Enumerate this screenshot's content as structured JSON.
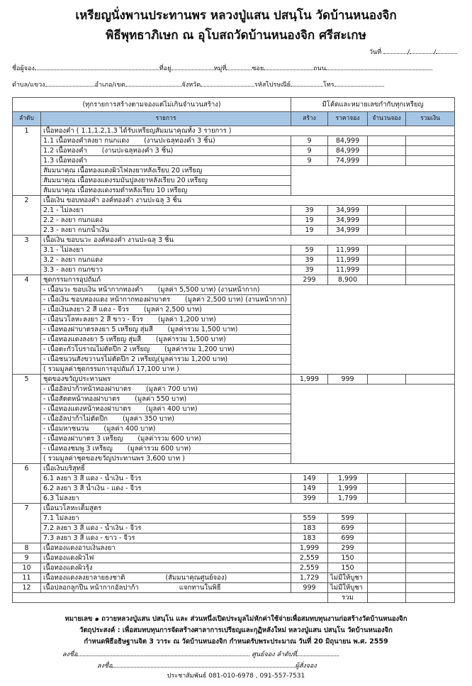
{
  "header": {
    "title": "เหรียญนั่งพานประทานพร หลวงปู่แสน ปสนฺโน วัดบ้านหนองจิก",
    "subtitle": "พิธีพุทธาภิเษก ณ อุโบสถวัดบ้านหนองจิก ศรีสะเกษ",
    "date_label": "วันที่",
    "date_sep": "/"
  },
  "form": {
    "name": "ชื่อผู้จอง",
    "address": "ที่อยู่",
    "moo": "หมู่ที่",
    "soi": "ซอย",
    "road": "ถนน",
    "tambon": "ตำบล/แขวง",
    "amphoe": "อำเภอ/เขต",
    "province": "จังหวัด",
    "postcode": "รหัสไปรษณีย์",
    "phone": "โทร"
  },
  "table": {
    "top_left": "(ทุกรายการสร้างตามจองแต่ไม่เกินจำนวนสร้าง)",
    "top_right": "มีโค้ดและหมายเลขกำกับทุกเหรียญ",
    "columns": [
      "ลำดับ",
      "รายการ",
      "สร้าง",
      "ราคาจอง",
      "จำนวนจอง",
      "รวมเงิน"
    ],
    "total_label": "รวม",
    "rows": [
      {
        "kind": "group",
        "num": "1",
        "desc": "เนื้อทองคำ  ( 1.1,1.2,1.3 ได้รับเหรียญสัมมนาคุณทั้ง 3 รายการ )"
      },
      {
        "kind": "item",
        "desc": "1.1 เนื้อทองคำลงยา กนกแดง",
        "note": "(งานปะฉลุทองคำ 3 ชิ้น)",
        "qty": "9",
        "price": "84,999"
      },
      {
        "kind": "item",
        "desc": "1.2 เนื้อทองคำ",
        "note": "(งานปะฉลุทองคำ 3 ชิ้น)",
        "qty": "9",
        "price": "84,999"
      },
      {
        "kind": "item",
        "desc": "1.3 เนื้อทองคำ",
        "qty": "9",
        "price": "74,999"
      },
      {
        "kind": "note",
        "desc": "สัมมนาคุณ เนื้อทองแดงผิวไฟลงยาหลังเรียบ 20 เหรียญ"
      },
      {
        "kind": "note",
        "cont": true,
        "desc": "สัมมนาคุณ เนื้อทองแดงรมมันปูลงยาหลังเรียบ 20 เหรียญ"
      },
      {
        "kind": "note",
        "cont": true,
        "desc": "สัมมนาคุณ เนื้อทองแดงรมดำหลังเรียบ 10 เหรียญ"
      },
      {
        "kind": "group",
        "num": "2",
        "desc": "เนื้อเงิน ขอบทองคำ องค์ทองคำ งานปะฉลุ 3 ชิ้น"
      },
      {
        "kind": "item",
        "desc": "2.1 - ไม่ลงยา",
        "qty": "39",
        "price": "34,999"
      },
      {
        "kind": "item",
        "desc": "2.2 - ลงยา กนกแดง",
        "qty": "19",
        "price": "34,999"
      },
      {
        "kind": "item",
        "desc": "2.3 - ลงยา กนกน้ำเงิน",
        "qty": "19",
        "price": "34,999"
      },
      {
        "kind": "group",
        "num": "3",
        "desc": "เนื้อเงิน ขอบนวะ องค์ทองคำ งานปะฉลุ 3 ชิ้น"
      },
      {
        "kind": "item",
        "desc": "3.1 - ไม่ลงยา",
        "qty": "59",
        "price": "11,999"
      },
      {
        "kind": "item",
        "desc": "3.2 - ลงยา กนกแดง",
        "qty": "39",
        "price": "11,999"
      },
      {
        "kind": "item",
        "desc": "3.3 - ลงยา กนกขาว",
        "qty": "39",
        "price": "11,999"
      },
      {
        "kind": "group_priced",
        "num": "4",
        "desc": "ชุดกรรมการอุปถัมภ์",
        "qty": "299",
        "price": "8,900"
      },
      {
        "kind": "note",
        "desc": " - เนื้อนวะ ขอบเงิน หน้ากากทองคำ",
        "note": "(มูลค่า 5,500 บาท)    (งานหน้ากาก)"
      },
      {
        "kind": "note",
        "cont": true,
        "desc": " -  เนื้อเงิน ขอบทองแดง หน้ากากทองฝาบาตร",
        "note": "(มูลค่า 2,500 บาท) (งานหน้ากาก)"
      },
      {
        "kind": "note",
        "cont": true,
        "desc": " - เนื้อเงินลงยา 2 สี แดง - จีวร",
        "note": "(มูลค่า 2,500 บาท)"
      },
      {
        "kind": "note",
        "cont": true,
        "desc": " - เนื้อนวโลหะลงยา 2 สี ขาว - จีวร",
        "note": "(มูลค่า 1,200 บาท)"
      },
      {
        "kind": "note",
        "cont": true,
        "desc": " - เนื้อทองฝาบาตรลงยา 5 เหรียญ   สุ่มสี",
        "note": "(มูลค่ารวม 1,500 บาท)"
      },
      {
        "kind": "note",
        "cont": true,
        "desc": " - เนื้อทองแดงลงยา 5 เหรียญ        สุ่มสี",
        "note": "(มูลค่ารวม 1,500 บาท)"
      },
      {
        "kind": "note",
        "cont": true,
        "desc": " - เนื้อตะกั่วโบราณไม่ตัดปีก 2 เหรียญ",
        "note": "(มูลค่ารวม 1,200 บาท)"
      },
      {
        "kind": "note",
        "cont": true,
        "desc": " - เนื้อชนวนสังขวานรไม่ตัดปีก 2 เหรียญ(มูลค่ารวม 1,200 บาท)"
      },
      {
        "kind": "note",
        "cont": true,
        "desc": "( รวมมูลค่าชุดกรรมการอุปถัมภ์ 17,100 บาท )"
      },
      {
        "kind": "group_priced",
        "num": "5",
        "desc": "ชุดของขวัญประทานพร",
        "qty": "1,999",
        "price": "999"
      },
      {
        "kind": "note",
        "desc": " - เนื้ออัลปาก้าหน้าทองฝาบาตร",
        "note": "(มูลค่า 700 บาท)"
      },
      {
        "kind": "note",
        "cont": true,
        "desc": " - เนื้อสัตตหน้าทองฝาบาตร",
        "note": "(มูลค่า 550 บาท)"
      },
      {
        "kind": "note",
        "cont": true,
        "desc": " - เนื้อทองแดงหน้าทองฝาบาตร",
        "note": "(มูลค่า 400 บาท)"
      },
      {
        "kind": "note",
        "cont": true,
        "desc": " - เนื้ออัลปาก้าไม่ตัดปีก",
        "note": "(มูลค่า 350 บาท)"
      },
      {
        "kind": "note",
        "cont": true,
        "desc": " - เนื้อมหาชนวน",
        "note": "(มูลค่า 400 บาท)"
      },
      {
        "kind": "note",
        "cont": true,
        "desc": " - เนื้อทองฝาบาตร 3 เหรียญ",
        "note": "(มูลค่ารวม 600 บาท)"
      },
      {
        "kind": "note",
        "cont": true,
        "desc": " - เนื้อทองชมพู 3 เหรียญ",
        "note": "(มูลค่ารวม 600 บาท)"
      },
      {
        "kind": "note",
        "cont": true,
        "desc": "( รวมมูลค่าชุดของขวัญประทานพร 3,600 บาท )"
      },
      {
        "kind": "group",
        "num": "6",
        "desc": "เนื้อเงินบริสุทธิ์"
      },
      {
        "kind": "item",
        "desc": "6.1 ลงยา 3 สี แดง - น้ำเงิน  - จีวร",
        "qty": "149",
        "price": "1,999"
      },
      {
        "kind": "item",
        "desc": "6.2 ลงยา 3 สี น้ำเงิน - แดง - จีวร",
        "qty": "149",
        "price": "1,999"
      },
      {
        "kind": "item",
        "desc": "6.3 ไม่ลงยา",
        "qty": "399",
        "price": "1,799"
      },
      {
        "kind": "group",
        "num": "7",
        "desc": "เนื้อนวโลหะเต็มสูตร"
      },
      {
        "kind": "item",
        "desc": "7.1 ไม่ลงยา",
        "qty": "559",
        "price": "599"
      },
      {
        "kind": "item",
        "desc": "7.2 ลงยา 3 สี แดง - น้ำเงิน - จีวร",
        "qty": "183",
        "price": "699"
      },
      {
        "kind": "item",
        "desc": "7.3 ลงยา 3 สี แดง - ขาว - จีวร",
        "qty": "183",
        "price": "699"
      },
      {
        "kind": "group_priced",
        "num": "8",
        "desc": "เนื้อทองแดงอาบเงินลงยา",
        "qty": "1,999",
        "price": "299"
      },
      {
        "kind": "group_priced",
        "num": "9",
        "desc": "เนื้อทองแดงผิวไฟ",
        "qty": "2,559",
        "price": "150"
      },
      {
        "kind": "group_priced",
        "num": "10",
        "desc": "เนื้อทองแดงผิวรุ้ง",
        "qty": "2,559",
        "price": "150"
      },
      {
        "kind": "group_priced",
        "num": "11",
        "desc": "เนื้อทองแดงลงยาลายธงชาติ",
        "note": "(สัมมนาคุณศูนย์จอง)",
        "qty": "1,729",
        "price": "ไม่มีให้บูชา",
        "price_left": true
      },
      {
        "kind": "group_priced",
        "num": "12",
        "desc": "เนื้อปลอกลูกปืน หน้ากากอัลปาก้า",
        "note": "แจกทานในพิธี",
        "qty": "999",
        "price": "ไม่มีให้บูชา",
        "price_left": true
      }
    ]
  },
  "footer": {
    "line1": "หมายเลข ๑ ถวายหลวงปู่แสน ปสนฺโน และ ส่วนหนึ่งเปิดประมูลไม่หักค่าใช้จ่ายเพื่อสมทบทุนงานก่อสร้างวัดบ้านหนองจิก",
    "line2": "วัตถุประสงค์ : เพื่อสมทบทุนการจัดสร้างศาลาการเปรียญและกุฏิหลังใหม่ หลวงปู่แสน ปสนฺโน วัดบ้านหนองจิก",
    "line3": "กำหนดพิธีอธิษฐานจิต 3 วาระ ณ วัดบ้านหนองจิก  กำหนดรับพระประมาณ วันที่ 20 มิถุนายน พ.ศ. 2559",
    "sign1_label": "ลงชื่อ",
    "sign1_role": "ศูนย์จอง ลำดับที่",
    "sign2_label": "ลงชื่อ",
    "sign2_role": "ผู้สั่งจอง",
    "contact": "ประชาสัมพันธ์ 081-010-6978 ,  091-557-7531"
  }
}
